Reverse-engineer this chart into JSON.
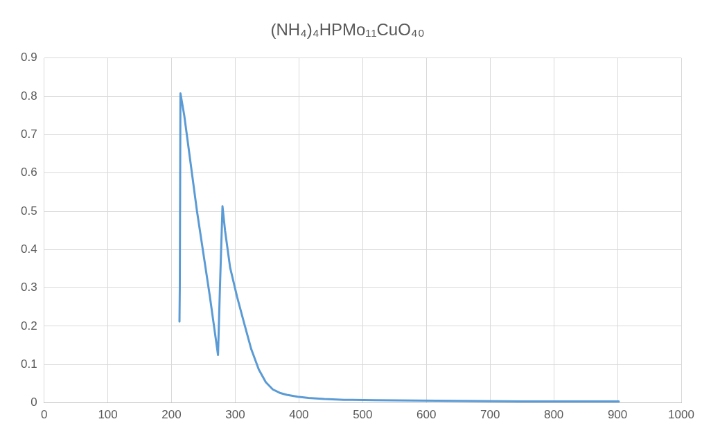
{
  "chart_data": {
    "type": "line",
    "title": "(NH₄)₄HPMo₁₁CuO₄₀",
    "x": [
      212.5,
      213,
      214,
      220,
      240,
      260,
      273,
      276,
      280,
      284,
      292,
      303,
      314,
      325,
      337,
      348,
      359,
      370,
      381,
      398,
      415,
      440,
      471,
      520,
      583,
      650,
      751,
      830,
      902
    ],
    "series": [
      {
        "color": "#5b9bd5",
        "values": [
          0.212,
          0.3,
          0.808,
          0.75,
          0.5,
          0.28,
          0.125,
          0.3,
          0.513,
          0.45,
          0.353,
          0.276,
          0.208,
          0.141,
          0.087,
          0.054,
          0.035,
          0.026,
          0.021,
          0.016,
          0.013,
          0.01,
          0.008,
          0.007,
          0.006,
          0.005,
          0.004,
          0.004,
          0.004
        ]
      }
    ],
    "xlim": [
      0,
      1000
    ],
    "xticks": [
      0,
      100,
      200,
      300,
      400,
      500,
      600,
      700,
      800,
      900,
      1000
    ],
    "ylim": [
      0,
      0.9
    ],
    "yticks": [
      0,
      0.1,
      0.2,
      0.3,
      0.4,
      0.5,
      0.6,
      0.7,
      0.8,
      0.9
    ],
    "grid": true,
    "legend": false,
    "marker": "none",
    "line_style": "solid"
  }
}
